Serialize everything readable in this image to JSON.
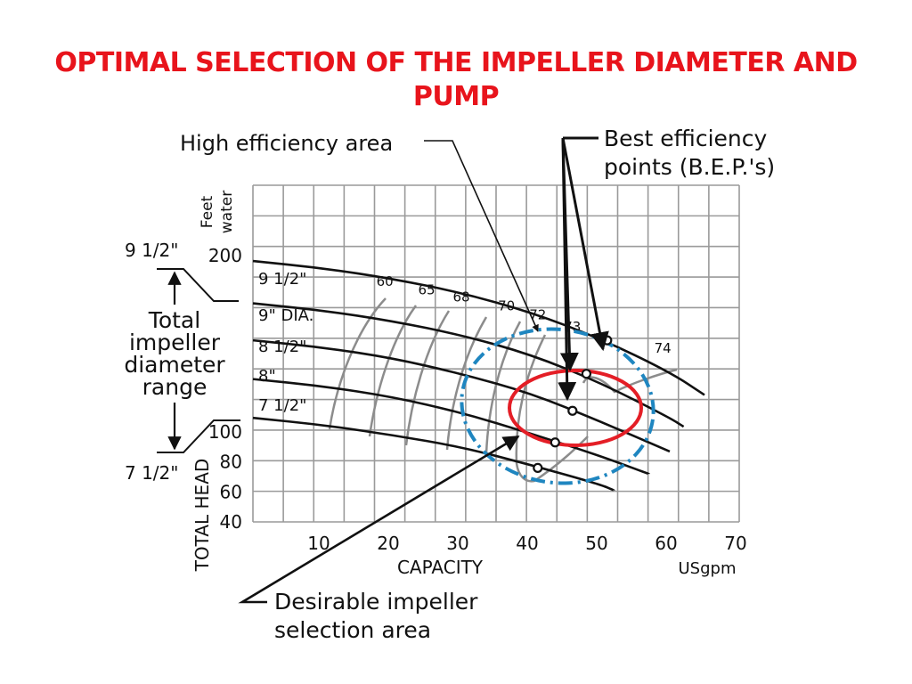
{
  "page": {
    "title_line1": "OPTIMAL SELECTION OF THE IMPELLER DIAMETER AND",
    "title_line2": "PUMP"
  },
  "colors": {
    "title": "#e8141c",
    "grid": "#9a9a9a",
    "curve": "#111111",
    "efficiency_curve": "#8c8c8c",
    "high_efficiency_area": "#1f86c0",
    "desirable_area": "#e41e26"
  },
  "annotations": {
    "high_efficiency_area": "High efficiency area",
    "bep_line1": "Best efficiency",
    "bep_line2": "points (B.E.P.'s)",
    "range_top": "9 1/2\"",
    "range_bottom": "7 1/2\"",
    "range_label": [
      "Total",
      "impeller",
      "diameter",
      "range"
    ],
    "desirable_line1": "Desirable impeller",
    "desirable_line2": "selection area"
  },
  "chart_data": {
    "type": "line",
    "xlabel": "CAPACITY",
    "xunit": "USgpm",
    "ylabel": "TOTAL HEAD",
    "yunit_line1": "Feet",
    "yunit_line2": "water",
    "xlim": [
      0,
      70
    ],
    "ylim": [
      40,
      240
    ],
    "x_ticks": [
      10,
      20,
      30,
      40,
      50,
      60,
      70
    ],
    "y_ticks": [
      40,
      60,
      80,
      100,
      200
    ],
    "grid": true,
    "series": [
      {
        "name": "9 1/2\"",
        "x": [
          0,
          10,
          20,
          30,
          40,
          50,
          60,
          65
        ],
        "y": [
          197,
          193,
          187,
          179,
          168,
          153,
          134,
          121
        ],
        "bep": [
          51,
          152
        ]
      },
      {
        "name": "9\" DIA.",
        "x": [
          0,
          10,
          20,
          30,
          40,
          50,
          60,
          62
        ],
        "y": [
          173,
          169,
          163,
          155,
          144,
          128,
          108,
          103
        ],
        "bep": [
          48,
          133
        ]
      },
      {
        "name": "8 1/2\"",
        "x": [
          0,
          10,
          20,
          30,
          40,
          50,
          60
        ],
        "y": [
          152,
          148,
          142,
          133,
          122,
          106,
          87
        ],
        "bep": [
          46,
          112
        ]
      },
      {
        "name": "8\"",
        "x": [
          0,
          10,
          20,
          30,
          40,
          50,
          57
        ],
        "y": [
          130,
          126,
          120,
          111,
          99,
          84,
          72
        ],
        "bep": [
          43.5,
          93
        ]
      },
      {
        "name": "7 1/2\"",
        "x": [
          0,
          10,
          20,
          30,
          40,
          50,
          52
        ],
        "y": [
          108,
          104,
          98,
          90,
          78,
          65,
          61
        ],
        "bep": [
          41,
          76
        ]
      }
    ],
    "efficiency_curves": [
      {
        "label": "60",
        "label_at": [
          19,
          183
        ]
      },
      {
        "label": "65",
        "label_at": [
          25,
          178
        ]
      },
      {
        "label": "68",
        "label_at": [
          30,
          174
        ]
      },
      {
        "label": "70",
        "label_at": [
          36.5,
          169
        ]
      },
      {
        "label": "72",
        "label_at": [
          41,
          164
        ]
      },
      {
        "label": "73",
        "label_at": [
          46,
          157
        ]
      },
      {
        "label": "74",
        "label_at": [
          59,
          145
        ]
      }
    ]
  }
}
